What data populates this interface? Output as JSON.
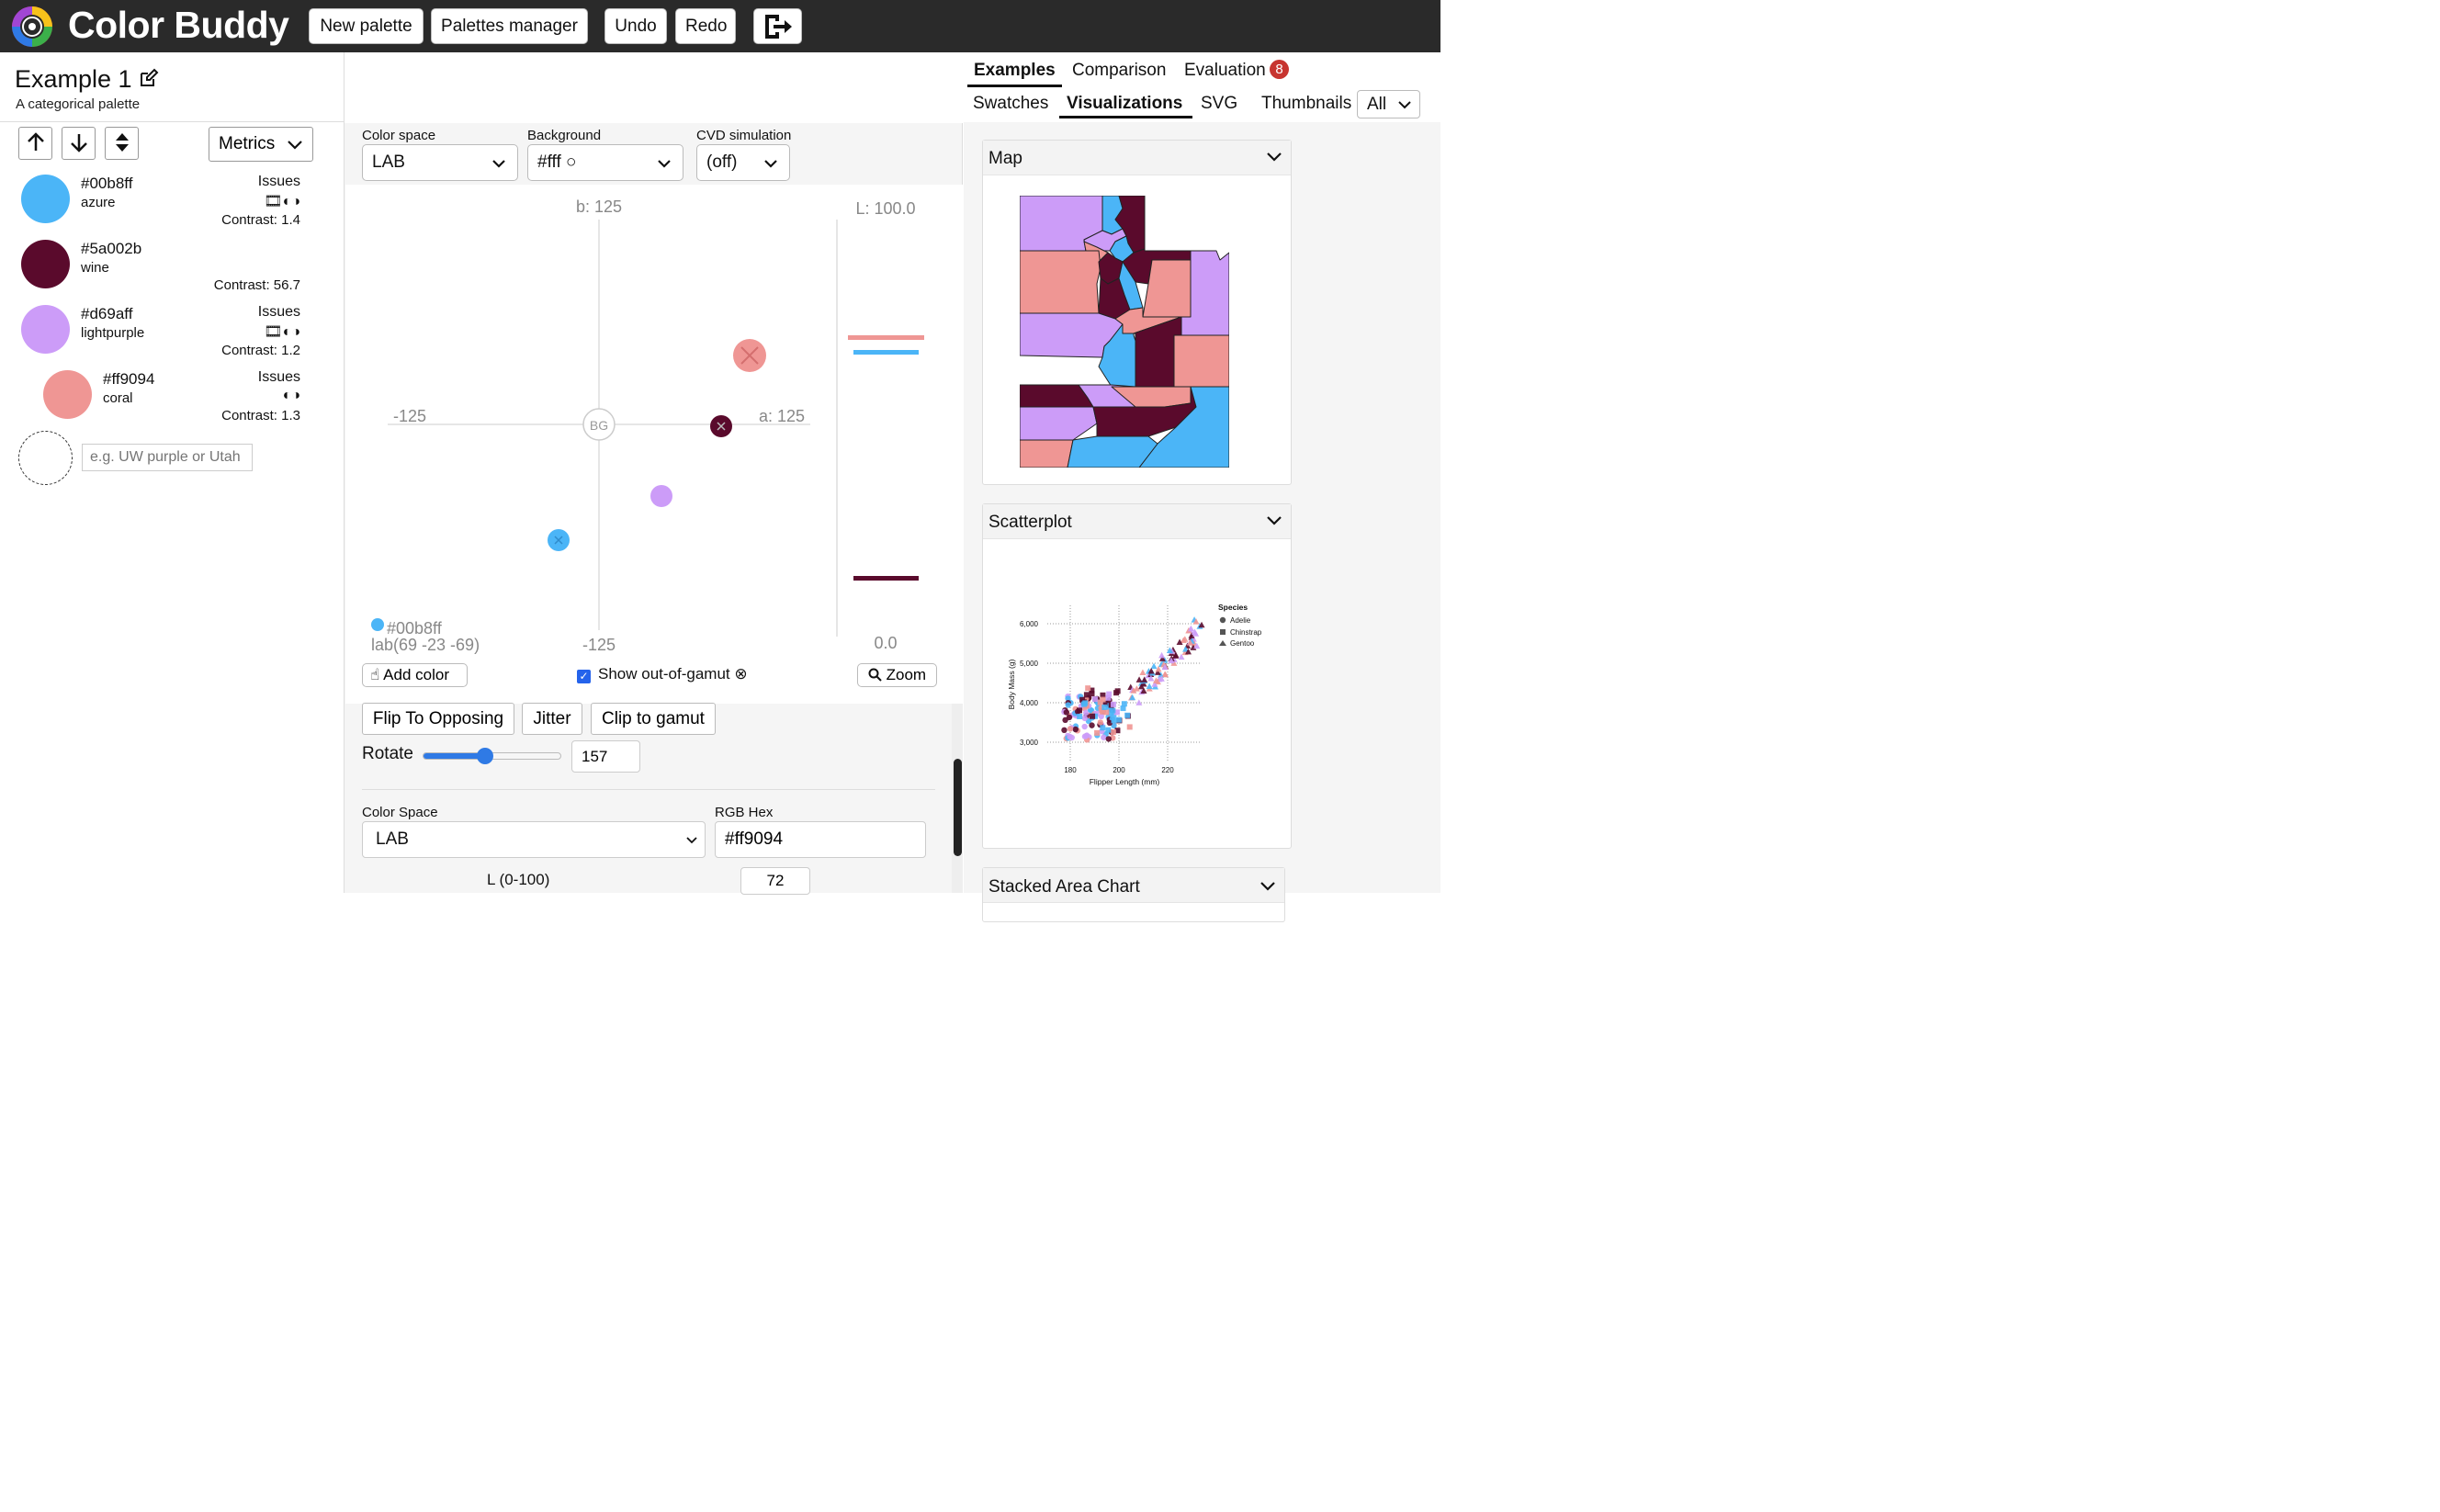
{
  "app": {
    "title": "Color Buddy",
    "buttons": {
      "new_palette": "New palette",
      "palettes_manager": "Palettes manager",
      "undo": "Undo",
      "redo": "Redo"
    }
  },
  "palette": {
    "name": "Example 1",
    "description": "A categorical palette",
    "metrics_label": "Metrics",
    "swatches": [
      {
        "hex": "#00b8ff",
        "name": "azure",
        "issues": "Issues",
        "icons": "🎞◐◑",
        "contrast": "Contrast: 1.4",
        "color": "#4bb5f7"
      },
      {
        "hex": "#5a002b",
        "name": "wine",
        "issues": "",
        "icons": "",
        "contrast": "Contrast: 56.7",
        "color": "#5a0a2c"
      },
      {
        "hex": "#d69aff",
        "name": "lightpurple",
        "issues": "Issues",
        "icons": "🎞◐◑",
        "contrast": "Contrast: 1.2",
        "color": "#cc9cf8"
      },
      {
        "hex": "#ff9094",
        "name": "coral",
        "issues": "Issues",
        "icons": "◐◑",
        "contrast": "Contrast: 1.3",
        "color": "#ef9694"
      }
    ],
    "add_placeholder": "e.g. UW purple or Utah"
  },
  "controls": {
    "color_space_label": "Color space",
    "color_space_value": "LAB",
    "background_label": "Background",
    "background_value": "#fff ○",
    "cvd_label": "CVD simulation",
    "cvd_value": "(off)"
  },
  "plot": {
    "b_top": "b: 125",
    "b_bottom": "-125",
    "a_left": "-125",
    "a_right": "a: 125",
    "bg_label": "BG",
    "l_top": "L: 100.0",
    "l_bottom": "0.0",
    "hover_hex": "#00b8ff",
    "hover_lab": "lab(69 -23 -69)",
    "add_color": "Add color",
    "show_gamut": "Show out-of-gamut ⊗",
    "zoom": "Zoom"
  },
  "actions": {
    "flip": "Flip To Opposing",
    "jitter": "Jitter",
    "clip": "Clip to gamut",
    "rotate_label": "Rotate",
    "rotate_value": "157",
    "color_space_label": "Color Space",
    "color_space_value": "LAB",
    "rgb_hex_label": "RGB Hex",
    "rgb_hex_value": "#ff9094",
    "l_label": "L (0-100)",
    "l_value": "72"
  },
  "right": {
    "tabs": [
      "Examples",
      "Comparison",
      "Evaluation"
    ],
    "evaluation_badge": "8",
    "subtabs": [
      "Swatches",
      "Visualizations",
      "SVG",
      "Thumbnails"
    ],
    "filter_value": "All",
    "cards": [
      "Map",
      "Scatterplot",
      "Stacked Area Chart"
    ],
    "scatter": {
      "ylabel": "Body Mass (g)",
      "xlabel": "Flipper Length (mm)",
      "yticks": [
        "6,000",
        "5,000",
        "4,000",
        "3,000"
      ],
      "xticks": [
        "180",
        "200",
        "220"
      ],
      "legend_title": "Species",
      "legend": [
        "Adelie",
        "Chinstrap",
        "Gentoo"
      ]
    }
  }
}
